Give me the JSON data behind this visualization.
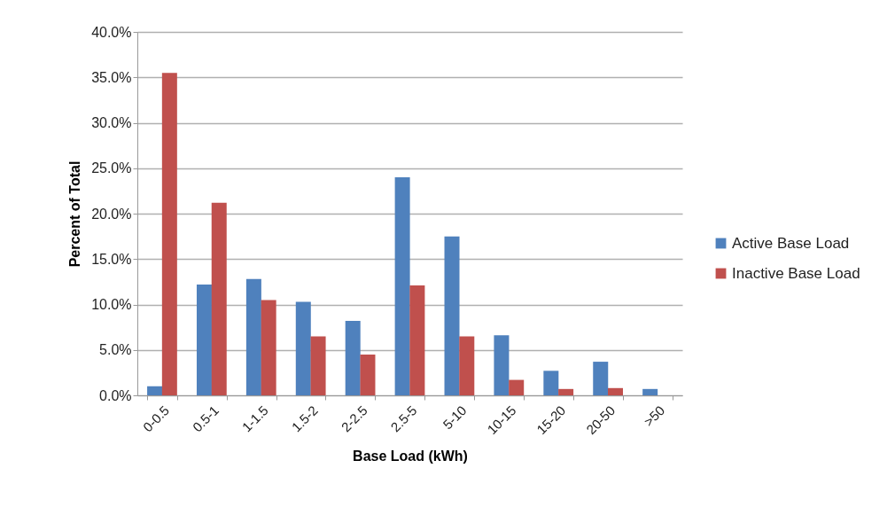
{
  "chart_data": {
    "type": "bar",
    "xlabel": "Base Load (kWh)",
    "ylabel": "Percent of Total",
    "categories": [
      "0-0.5",
      "0.5-1",
      "1-1.5",
      "1.5-2",
      "2-2.5",
      "2.5-5",
      "5-10",
      "10-15",
      "15-20",
      "20-50",
      ">50"
    ],
    "series": [
      {
        "name": "Active Base Load",
        "color": "#4f81bd",
        "values": [
          1.0,
          12.2,
          12.8,
          10.3,
          8.2,
          24.0,
          17.5,
          6.6,
          2.7,
          3.7,
          0.7
        ]
      },
      {
        "name": "Inactive Base Load",
        "color": "#c0504d",
        "values": [
          35.5,
          21.2,
          10.5,
          6.5,
          4.5,
          12.1,
          6.5,
          1.7,
          0.7,
          0.8,
          null
        ]
      }
    ],
    "ylim": [
      0,
      40
    ],
    "yticks": [
      {
        "value": 0,
        "label": "0.0%"
      },
      {
        "value": 5,
        "label": "5.0%"
      },
      {
        "value": 10,
        "label": "10.0%"
      },
      {
        "value": 15,
        "label": "15.0%"
      },
      {
        "value": 20,
        "label": "20.0%"
      },
      {
        "value": 25,
        "label": "25.0%"
      },
      {
        "value": 30,
        "label": "30.0%"
      },
      {
        "value": 35,
        "label": "35.0%"
      },
      {
        "value": 40,
        "label": "40.0%"
      }
    ],
    "grid": "y",
    "legend": "right"
  }
}
